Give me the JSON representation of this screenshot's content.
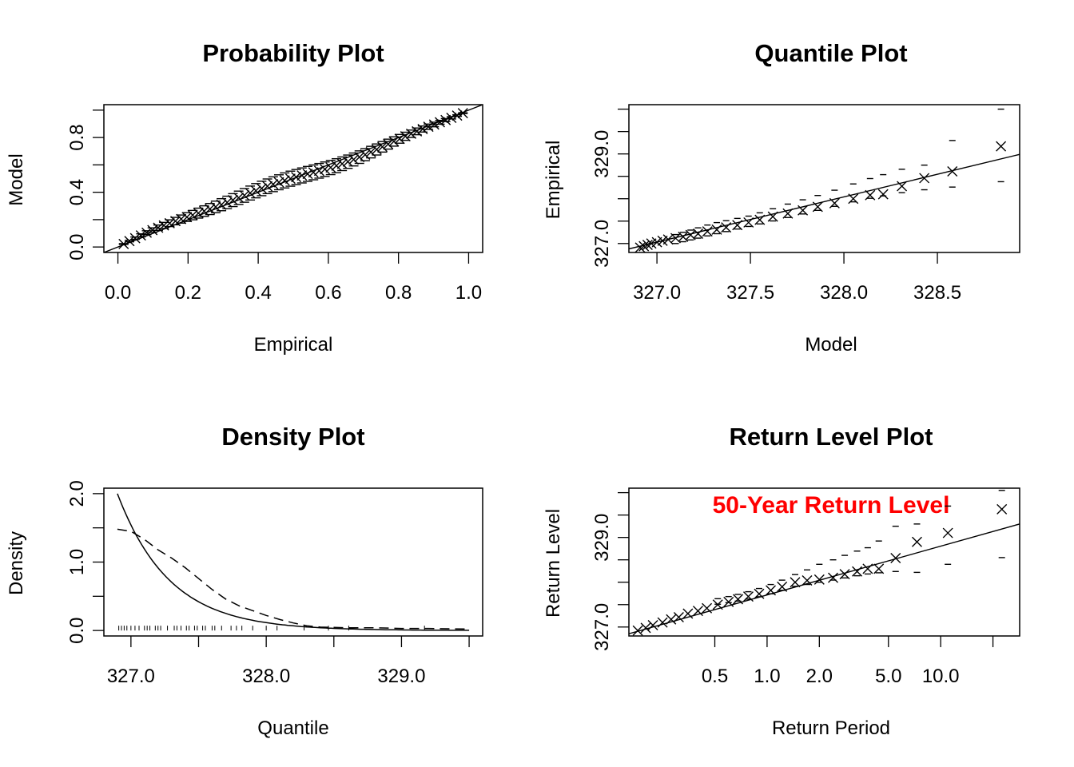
{
  "chart_data": [
    {
      "type": "scatter",
      "panel": "probability",
      "title": "Probability Plot",
      "xlabel": "Empirical",
      "ylabel": "Model",
      "xlim": [
        -0.04,
        1.04
      ],
      "ylim": [
        -0.04,
        1.04
      ],
      "xticks": [
        "0.0",
        "0.2",
        "0.4",
        "0.6",
        "0.8",
        "1.0"
      ],
      "yticks": [
        "0.0",
        "0.4",
        "0.8"
      ],
      "ytick_marks": [
        0.0,
        0.2,
        0.4,
        0.6,
        0.8,
        1.0
      ],
      "n_points": 60,
      "reference_line": "y = x",
      "band_halfwidth_max": 0.055,
      "series": [
        {
          "name": "",
          "marker": "x"
        },
        {
          "name": "",
          "marker": "dash",
          "role": "confidence band"
        }
      ]
    },
    {
      "type": "scatter",
      "panel": "quantile",
      "title": "Quantile Plot",
      "xlabel": "Model",
      "ylabel": "Empirical",
      "xlim": [
        326.85,
        328.94
      ],
      "ylim": [
        326.8,
        330.1
      ],
      "xticks": [
        "327.0",
        "327.5",
        "328.0",
        "328.5"
      ],
      "yticks": [
        "327.0",
        "329.0"
      ],
      "ytick_marks": [
        327.0,
        327.5,
        328.0,
        328.5,
        329.0,
        329.5,
        330.0
      ],
      "points": [
        [
          326.91,
          326.91
        ],
        [
          326.93,
          326.94
        ],
        [
          326.95,
          326.97
        ],
        [
          326.97,
          327.0
        ],
        [
          327.0,
          327.03
        ],
        [
          327.03,
          327.06
        ],
        [
          327.06,
          327.09
        ],
        [
          327.1,
          327.12
        ],
        [
          327.14,
          327.15
        ],
        [
          327.18,
          327.19
        ],
        [
          327.22,
          327.22
        ],
        [
          327.27,
          327.27
        ],
        [
          327.32,
          327.31
        ],
        [
          327.37,
          327.36
        ],
        [
          327.43,
          327.41
        ],
        [
          327.49,
          327.47
        ],
        [
          327.55,
          327.53
        ],
        [
          327.62,
          327.6
        ],
        [
          327.7,
          327.67
        ],
        [
          327.78,
          327.74
        ],
        [
          327.86,
          327.82
        ],
        [
          327.95,
          327.9
        ],
        [
          328.05,
          328.0
        ],
        [
          328.14,
          328.08
        ],
        [
          328.21,
          328.1
        ],
        [
          328.31,
          328.28
        ],
        [
          328.43,
          328.46
        ],
        [
          328.58,
          328.61
        ],
        [
          328.84,
          329.17
        ]
      ],
      "reference_line": [
        [
          326.85,
          326.88
        ],
        [
          328.94,
          328.99
        ]
      ],
      "upper_band": [
        [
          327.1,
          327.2
        ],
        [
          327.3,
          327.45
        ],
        [
          327.5,
          327.62
        ],
        [
          327.7,
          327.88
        ],
        [
          327.9,
          328.12
        ],
        [
          328.1,
          328.4
        ],
        [
          328.3,
          328.65
        ],
        [
          328.43,
          328.75
        ],
        [
          328.58,
          329.3
        ],
        [
          328.84,
          330.0
        ]
      ],
      "lower_band": [
        [
          327.1,
          327.0
        ],
        [
          327.3,
          327.2
        ],
        [
          327.5,
          327.39
        ],
        [
          327.7,
          327.58
        ],
        [
          327.9,
          327.78
        ],
        [
          328.1,
          327.98
        ],
        [
          328.3,
          328.13
        ],
        [
          328.43,
          328.2
        ],
        [
          328.58,
          328.26
        ],
        [
          328.84,
          328.38
        ]
      ],
      "series": [
        {
          "name": "",
          "marker": "x"
        },
        {
          "name": "",
          "marker": "dash",
          "role": "confidence band"
        }
      ]
    },
    {
      "type": "line",
      "panel": "density",
      "title": "Density Plot",
      "xlabel": "Quantile",
      "ylabel": "Density",
      "xlim": [
        326.8,
        329.6
      ],
      "ylim": [
        -0.08,
        2.08
      ],
      "xticks": [
        "327.0",
        "328.0",
        "329.0"
      ],
      "xtick_marks": [
        327.0,
        327.5,
        328.0,
        328.5,
        329.0,
        329.5
      ],
      "yticks": [
        "0.0",
        "1.0",
        "2.0"
      ],
      "ytick_marks": [
        0.0,
        0.5,
        1.0,
        1.5,
        2.0
      ],
      "model_density": {
        "shape": "exponential",
        "x0": 326.9,
        "y0": 2.0,
        "rate": 2.6
      },
      "empirical_density": [
        [
          326.9,
          1.48
        ],
        [
          327.0,
          1.45
        ],
        [
          327.1,
          1.33
        ],
        [
          327.2,
          1.18
        ],
        [
          327.3,
          1.06
        ],
        [
          327.4,
          0.92
        ],
        [
          327.5,
          0.76
        ],
        [
          327.6,
          0.6
        ],
        [
          327.7,
          0.46
        ],
        [
          327.8,
          0.36
        ],
        [
          327.9,
          0.29
        ],
        [
          328.0,
          0.22
        ],
        [
          328.1,
          0.16
        ],
        [
          328.2,
          0.11
        ],
        [
          328.3,
          0.07
        ],
        [
          328.4,
          0.05
        ],
        [
          328.6,
          0.04
        ],
        [
          328.8,
          0.04
        ],
        [
          329.0,
          0.03
        ],
        [
          329.2,
          0.03
        ],
        [
          329.5,
          0.02
        ]
      ],
      "rug": [
        326.91,
        326.93,
        326.95,
        326.97,
        327.0,
        327.03,
        327.06,
        327.1,
        327.12,
        327.14,
        327.18,
        327.2,
        327.22,
        327.27,
        327.32,
        327.34,
        327.37,
        327.41,
        327.43,
        327.47,
        327.49,
        327.53,
        327.55,
        327.6,
        327.62,
        327.67,
        327.74,
        327.78,
        327.82,
        327.9,
        328.0,
        328.08,
        328.28,
        328.46,
        328.61,
        329.17
      ],
      "series": [
        {
          "name": "",
          "style": "solid",
          "role": "model"
        },
        {
          "name": "",
          "style": "dashed",
          "role": "empirical"
        }
      ]
    },
    {
      "type": "scatter",
      "panel": "return_level",
      "title": "Return Level Plot",
      "xlabel": "Return Period",
      "ylabel": "Return Level",
      "xscale": "log",
      "xlim": [
        0.16,
        28.5
      ],
      "ylim": [
        326.8,
        330.1
      ],
      "xticks": [
        "0.5",
        "1.0",
        "2.0",
        "5.0",
        "10.0"
      ],
      "xtick_values": [
        0.5,
        1.0,
        2.0,
        5.0,
        10.0,
        20.0
      ],
      "yticks": [
        "327.0",
        "329.0"
      ],
      "ytick_marks": [
        327.0,
        327.5,
        328.0,
        328.5,
        329.0,
        329.5,
        330.0
      ],
      "annotation": {
        "text": "50-Year Return Level",
        "color": "#ff0000"
      },
      "points": [
        [
          0.18,
          326.92
        ],
        [
          0.2,
          326.98
        ],
        [
          0.22,
          327.04
        ],
        [
          0.25,
          327.1
        ],
        [
          0.28,
          327.17
        ],
        [
          0.31,
          327.22
        ],
        [
          0.35,
          327.3
        ],
        [
          0.4,
          327.36
        ],
        [
          0.45,
          327.42
        ],
        [
          0.52,
          327.5
        ],
        [
          0.6,
          327.56
        ],
        [
          0.68,
          327.62
        ],
        [
          0.78,
          327.68
        ],
        [
          0.9,
          327.74
        ],
        [
          1.05,
          327.82
        ],
        [
          1.22,
          327.9
        ],
        [
          1.45,
          328.0
        ],
        [
          1.7,
          328.04
        ],
        [
          2.0,
          328.06
        ],
        [
          2.4,
          328.1
        ],
        [
          2.8,
          328.18
        ],
        [
          3.3,
          328.24
        ],
        [
          3.8,
          328.3
        ],
        [
          4.4,
          328.3
        ],
        [
          5.5,
          328.54
        ],
        [
          7.3,
          328.9
        ],
        [
          11.0,
          329.1
        ],
        [
          22.5,
          329.63
        ]
      ],
      "reference_line": [
        [
          0.16,
          326.85
        ],
        [
          28.5,
          329.3
        ]
      ],
      "upper_band": [
        [
          0.5,
          327.62
        ],
        [
          1.0,
          327.92
        ],
        [
          1.4,
          328.15
        ],
        [
          2.0,
          328.4
        ],
        [
          3.0,
          328.65
        ],
        [
          4.0,
          328.8
        ],
        [
          5.5,
          329.25
        ],
        [
          7.3,
          329.3
        ],
        [
          11.0,
          329.7
        ],
        [
          22.5,
          330.05
        ]
      ],
      "lower_band": [
        [
          0.5,
          327.5
        ],
        [
          1.0,
          327.72
        ],
        [
          1.4,
          327.9
        ],
        [
          2.0,
          328.0
        ],
        [
          3.0,
          328.12
        ],
        [
          4.0,
          328.2
        ],
        [
          5.5,
          328.24
        ],
        [
          7.3,
          328.22
        ],
        [
          11.0,
          328.4
        ],
        [
          22.5,
          328.55
        ]
      ],
      "series": [
        {
          "name": "",
          "marker": "x"
        },
        {
          "name": "",
          "marker": "dash",
          "role": "confidence band"
        }
      ]
    }
  ]
}
